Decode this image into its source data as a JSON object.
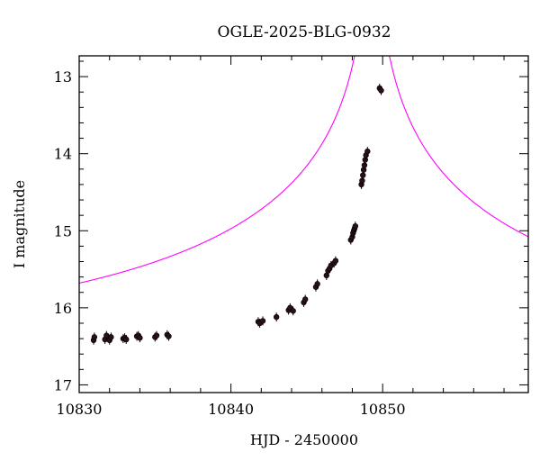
{
  "chart_data": {
    "type": "scatter",
    "title": "OGLE-2025-BLG-0932",
    "xlabel": "HJD - 2450000",
    "ylabel": "I magnitude",
    "xlim": [
      10830,
      10859.6
    ],
    "ylim": [
      17.1,
      12.73
    ],
    "y_inverted": true,
    "x_major_ticks": [
      10830,
      10840,
      10850
    ],
    "x_tick_labels": [
      "10830",
      "10840",
      "10850"
    ],
    "y_major_ticks": [
      13,
      14,
      15,
      16,
      17
    ],
    "y_tick_labels": [
      "13",
      "14",
      "15",
      "16",
      "17"
    ],
    "minor_step_x": 2,
    "minor_step_y": 0.2,
    "grid": false,
    "legend": "none",
    "colors": {
      "model": "#ff00ff",
      "points": "#2b0f1a",
      "axes": "#000000"
    },
    "series": [
      {
        "kind": "points",
        "x": [
          10830.95,
          10831.0,
          10831.7,
          10831.8,
          10832.0,
          10832.1,
          10832.9,
          10833.0,
          10833.1,
          10833.8,
          10833.9,
          10834.0,
          10835.0,
          10835.1,
          10835.8,
          10835.9,
          10841.8,
          10841.9,
          10842.1,
          10843.0,
          10843.8,
          10843.9,
          10844.1,
          10844.8,
          10844.9,
          10845.6,
          10845.7,
          10846.3,
          10846.4,
          10846.5,
          10846.6,
          10846.8,
          10846.9,
          10847.9,
          10848.0,
          10848.05,
          10848.1,
          10848.15,
          10848.2,
          10848.6,
          10848.65,
          10848.7,
          10848.75,
          10848.8,
          10848.85,
          10848.9,
          10849.0,
          10849.8,
          10849.9
        ],
        "y": [
          16.42,
          16.38,
          16.41,
          16.36,
          16.42,
          16.38,
          16.4,
          16.39,
          16.41,
          16.37,
          16.36,
          16.39,
          16.38,
          16.36,
          16.35,
          16.37,
          16.18,
          16.2,
          16.17,
          16.12,
          16.03,
          16.0,
          16.04,
          15.93,
          15.89,
          15.73,
          15.69,
          15.58,
          15.52,
          15.49,
          15.45,
          15.42,
          15.39,
          15.12,
          15.08,
          15.03,
          15.0,
          14.97,
          14.94,
          14.4,
          14.35,
          14.28,
          14.21,
          14.15,
          14.08,
          14.02,
          13.97,
          13.15,
          13.18
        ]
      },
      {
        "kind": "model",
        "model": "PSPL",
        "t0": 10849.3,
        "u0": 0.0005,
        "tE": 35,
        "baseline_mag": 16.44
      }
    ]
  }
}
